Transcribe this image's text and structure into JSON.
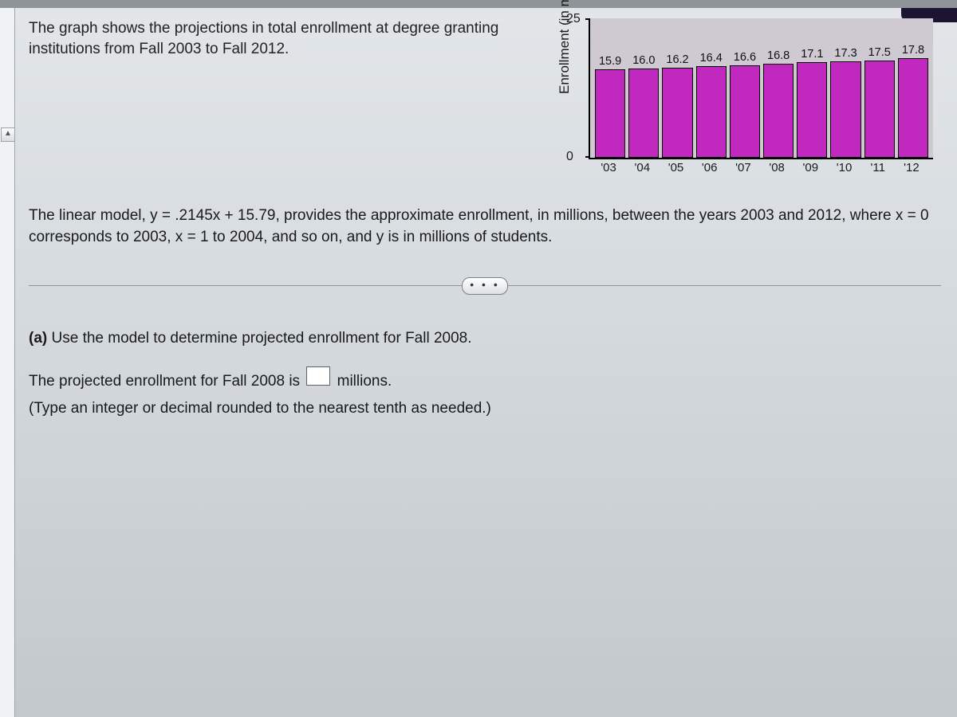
{
  "intro": "The graph shows the projections in total enrollment at degree granting institutions from Fall 2003 to Fall 2012.",
  "chart": {
    "type": "bar",
    "y_label": "Enrollment (in millions)",
    "ylim": [
      0,
      25
    ],
    "yticks": [
      0,
      25
    ],
    "categories": [
      "'03",
      "'04",
      "'05",
      "'06",
      "'07",
      "'08",
      "'09",
      "'10",
      "'11",
      "'12"
    ],
    "values": [
      15.9,
      16.0,
      16.2,
      16.4,
      16.6,
      16.8,
      17.1,
      17.3,
      17.5,
      17.8
    ],
    "bar_color": "#c028c0",
    "bar_border": "#000000",
    "plot_bg": "#cfc9d1",
    "value_fontsize": 14,
    "axis_fontsize": 16
  },
  "para2": "The linear model, y = .2145x + 15.79, provides the approximate enrollment, in millions, between the years 2003 and 2012, where x = 0 corresponds to 2003, x = 1 to 2004, and so on, and y is in millions of students.",
  "dots": "• • •",
  "question": {
    "label": "(a)",
    "prompt": " Use the model to determine projected enrollment for Fall 2008.",
    "answer_prefix": "The projected enrollment for Fall 2008 is ",
    "answer_suffix": " millions.",
    "hint": "(Type an integer or decimal rounded to the nearest tenth as needed.)"
  }
}
